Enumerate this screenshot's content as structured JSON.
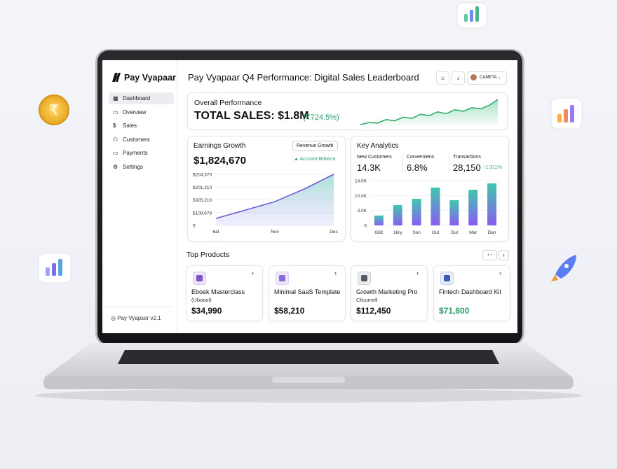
{
  "decor": {
    "coin_symbol": "₹"
  },
  "sidebar": {
    "brand": "Pay Vyapaar",
    "nav": [
      "Dashboard",
      "Overview",
      "Sales",
      "Customers",
      "Payments",
      "Settings"
    ],
    "footer": "Pay Vyapser v2.1"
  },
  "header": {
    "title": "Pay Vyapaar Q4 Performance: Digital Sales Leaderboard",
    "user": "CAMETA"
  },
  "overall": {
    "title": "Overall Performance",
    "total": "TOTAL SALES: $1.8M",
    "change": "(₹724.5%)",
    "trend": [
      5,
      12,
      10,
      22,
      18,
      30,
      26,
      40,
      35,
      48,
      42,
      55,
      50,
      62,
      58,
      70,
      90
    ]
  },
  "earnings": {
    "title": "Earnings Growth",
    "button": "Revenue Growth",
    "amount": "$1,824,670",
    "note": "Account Bdance",
    "chart": {
      "type": "line",
      "categories": [
        "6at",
        null,
        "Nov",
        null,
        "Des"
      ],
      "values": [
        0.55,
        1.2,
        1.86,
        2.85,
        4
      ],
      "color": "#6b5bd6",
      "ylim": [
        0,
        4
      ],
      "yticks": [
        {
          "value": 4,
          "label": "$204,370"
        },
        {
          "value": 3,
          "label": "$201,210"
        },
        {
          "value": 2,
          "label": "$305,210"
        },
        {
          "value": 1,
          "label": "$109,678"
        },
        {
          "value": 0,
          "label": "5"
        }
      ]
    }
  },
  "analytics": {
    "title": "Key Analytics",
    "metrics": [
      {
        "label": "New Customers",
        "value": "14.3K"
      },
      {
        "label": "Converniens",
        "value": "6.8%"
      },
      {
        "label": "Transactions",
        "value": "28,150",
        "delta": "↑1,311%"
      }
    ],
    "chart": {
      "type": "bar",
      "categories": [
        "G82",
        "16ry",
        "Son",
        "Out",
        "Gul",
        "Mar",
        "Dan"
      ],
      "values": [
        0.66,
        1.36,
        1.78,
        2.53,
        1.69,
        2.39,
        2.81
      ],
      "ylim": [
        0,
        3
      ],
      "yticks": [
        {
          "value": 3,
          "label": "14.0K"
        },
        {
          "value": 2,
          "label": "10.0K"
        },
        {
          "value": 1,
          "label": "3.0K"
        },
        0
      ]
    }
  },
  "products": {
    "title": "Top Products",
    "items": [
      {
        "name": "Eboek Masterclass",
        "sub": "(Uboool)",
        "price": "$34,990"
      },
      {
        "name": "Minimal SaaS Template",
        "price": "$58,210"
      },
      {
        "name": "Growth Marketing Pro",
        "sub": "Clicumell",
        "price": "$112,450"
      },
      {
        "name": "Fintech Dashboard Kit",
        "price": "$71,800"
      }
    ]
  }
}
